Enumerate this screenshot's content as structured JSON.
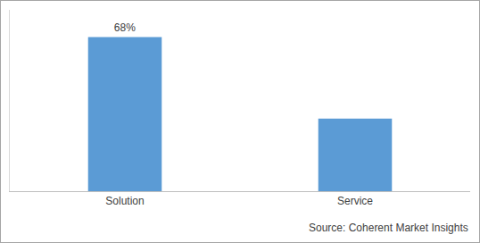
{
  "chart_data": {
    "type": "bar",
    "categories": [
      "Solution",
      "Service"
    ],
    "values": [
      68,
      32
    ],
    "value_labels": [
      "68%",
      null
    ],
    "data_labels": true,
    "color": "#5b9bd5",
    "ylim": [
      0,
      80
    ],
    "grid": false,
    "tick_labels": "x",
    "annotations": [
      "Source: Coherent Market Insights"
    ]
  }
}
